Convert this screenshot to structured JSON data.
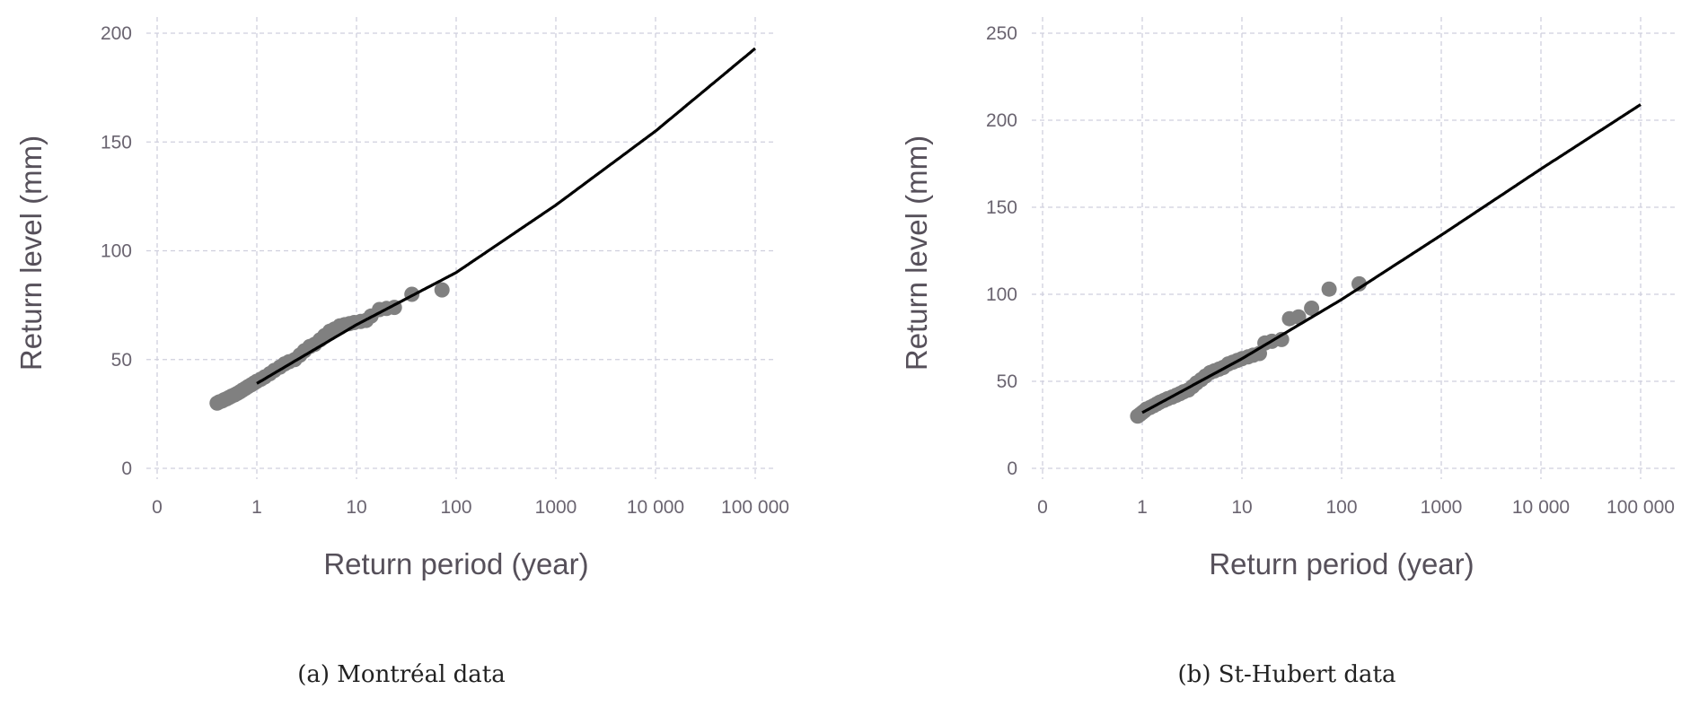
{
  "chart_data": [
    {
      "type": "scatter",
      "caption": "(a) Montréal data",
      "xlabel": "Return period (year)",
      "ylabel": "Return level (mm)",
      "x_ticks": [
        "0",
        "1",
        "10",
        "100",
        "1000",
        "10 000",
        "100 000"
      ],
      "y_ticks": [
        0,
        50,
        100,
        150,
        200
      ],
      "ylim": [
        0,
        200
      ],
      "grid": true,
      "colors": {
        "points": "#808080",
        "line": "#000000"
      },
      "series": [
        {
          "kind": "points",
          "x": [
            0.4,
            0.42,
            0.45,
            0.47,
            0.5,
            0.53,
            0.56,
            0.6,
            0.64,
            0.68,
            0.72,
            0.77,
            0.82,
            0.88,
            0.94,
            1.0,
            1.1,
            1.2,
            1.35,
            1.5,
            1.7,
            1.9,
            2.1,
            2.4,
            2.7,
            3.0,
            3.4,
            3.8,
            4.3,
            4.8,
            5.4,
            6.0,
            6.8,
            7.6,
            8.5,
            9.5,
            11,
            12.5,
            14,
            17,
            20,
            24,
            36,
            72
          ],
          "y": [
            30,
            30.5,
            31,
            31.5,
            32,
            32.6,
            33.2,
            33.8,
            34.5,
            35.2,
            36,
            36.8,
            37.6,
            38.4,
            39.2,
            40,
            41,
            42,
            43.5,
            45,
            46.5,
            48,
            49,
            50,
            52,
            54,
            56,
            57,
            59,
            61,
            63,
            64,
            65.5,
            66,
            66.5,
            67,
            67.5,
            68,
            70,
            73,
            73.5,
            74,
            80,
            82
          ]
        },
        {
          "kind": "line",
          "x": [
            1,
            10,
            100,
            1000,
            10000,
            100000
          ],
          "y": [
            39,
            66,
            90,
            121,
            155,
            193
          ]
        }
      ]
    },
    {
      "type": "scatter",
      "caption": "(b) St-Hubert data",
      "xlabel": "Return period (year)",
      "ylabel": "Return level (mm)",
      "x_ticks": [
        "0",
        "1",
        "10",
        "100",
        "1000",
        "10 000",
        "100 000"
      ],
      "y_ticks": [
        0,
        50,
        100,
        150,
        200,
        250
      ],
      "ylim": [
        0,
        250
      ],
      "grid": true,
      "colors": {
        "points": "#808080",
        "line": "#000000"
      },
      "series": [
        {
          "kind": "points",
          "x": [
            0.9,
            0.95,
            1.0,
            1.05,
            1.1,
            1.2,
            1.3,
            1.4,
            1.5,
            1.65,
            1.8,
            2.0,
            2.2,
            2.4,
            2.6,
            2.9,
            3.2,
            3.5,
            3.9,
            4.3,
            4.8,
            5.3,
            5.9,
            6.5,
            7.3,
            8.1,
            9.0,
            10,
            11.5,
            13,
            15,
            17,
            20,
            25,
            30,
            37,
            50,
            75,
            150
          ],
          "y": [
            30,
            31,
            32,
            33,
            34,
            35,
            36,
            37,
            38,
            39,
            40,
            41,
            42,
            43,
            44,
            45,
            47,
            49,
            51,
            53,
            55,
            56,
            57,
            58,
            60,
            61,
            62,
            63,
            64,
            65,
            66,
            72,
            73,
            74,
            86,
            87,
            92,
            103,
            106
          ]
        },
        {
          "kind": "line",
          "x": [
            1,
            10,
            100,
            1000,
            10000,
            100000
          ],
          "y": [
            32,
            63,
            97,
            134,
            172,
            209
          ]
        }
      ]
    }
  ]
}
